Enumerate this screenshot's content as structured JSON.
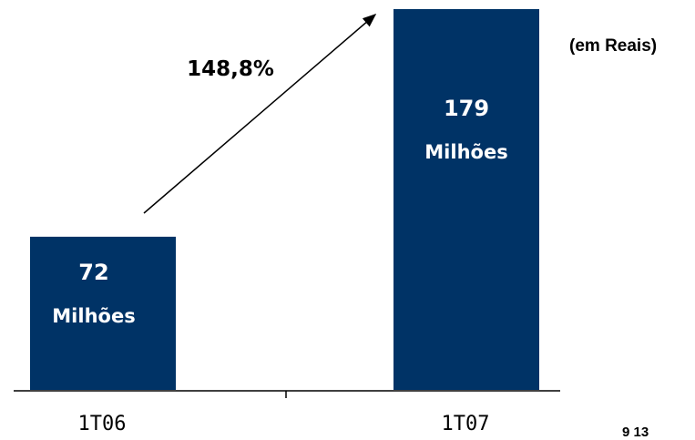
{
  "unit_label": "(em Reais)",
  "page_number": "9  13",
  "growth_label": "148,8%",
  "colors": {
    "bar": "#003366",
    "bar_text": "#ffffff",
    "axis": "#000000"
  },
  "chart_data": {
    "type": "bar",
    "categories": [
      "1T06",
      "1T07"
    ],
    "values": [
      72,
      179
    ],
    "value_labels": [
      "72",
      "179"
    ],
    "unit_text": "Milhões",
    "annotation": "148,8%",
    "ylim": [
      0,
      179
    ],
    "grid": false,
    "legend": "none"
  }
}
